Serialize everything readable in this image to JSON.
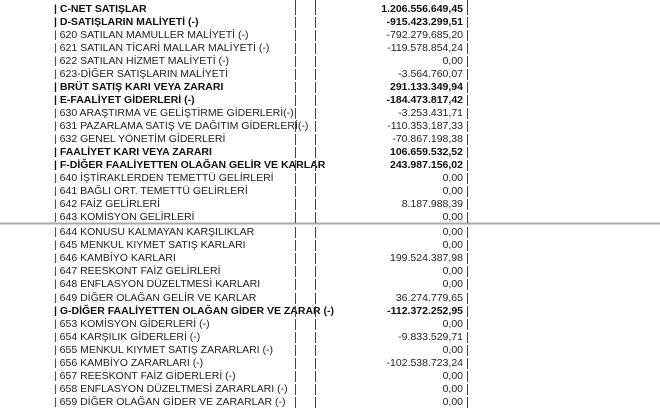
{
  "rows": [
    {
      "label": "| C-NET SATIŞLAR",
      "value": "1.206.556.649,45",
      "bold": true
    },
    {
      "label": "| D-SATIŞLARIN MALİYETİ (-)",
      "value": "-915.423.299,51",
      "bold": true
    },
    {
      "label": "| 620 SATILAN MAMULLER MALİYETİ (-)",
      "value": "-792.279.685,20",
      "bold": false
    },
    {
      "label": "| 621 SATILAN TİCARİ MALLAR MALİYETİ (-)",
      "value": "-119.578.854,24",
      "bold": false
    },
    {
      "label": "| 622 SATILAN HİZMET MALİYETİ (-)",
      "value": "0,00",
      "bold": false
    },
    {
      "label": "| 623-DİĞER SATIŞLARIN MALİYETİ",
      "value": "-3.564.760,07",
      "bold": false
    },
    {
      "label": "| BRÜT SATIŞ KARI VEYA ZARARI",
      "value": "291.133.349,94",
      "bold": true
    },
    {
      "label": "| E-FAALİYET GİDERLERİ (-)",
      "value": "-184.473.817,42",
      "bold": true
    },
    {
      "label": "| 630 ARAŞTIRMA VE GELİŞTİRME GİDERLERİ(-)",
      "value": "-3.253.431,71",
      "bold": false
    },
    {
      "label": "| 631 PAZARLAMA SATIŞ VE DAĞITIM GİDERLERİ(-)",
      "value": "-110.353.187,33",
      "bold": false
    },
    {
      "label": "| 632 GENEL YÖNETİM GİDERLERİ",
      "value": "-70.867.198,38",
      "bold": false
    },
    {
      "label": "| FAALİYET KARI VEYA ZARARI",
      "value": "106.659.532,52",
      "bold": true
    },
    {
      "label": "| F-DİĞER FAALİYETTEN OLAĞAN GELİR VE KARLAR",
      "value": "243.987.156,02",
      "bold": true
    },
    {
      "label": "| 640 İŞTİRAKLERDEN TEMETTÜ GELİRLERİ",
      "value": "0,00",
      "bold": false
    },
    {
      "label": "| 641 BAĞLI ORT. TEMETTÜ GELİRLERİ",
      "value": "0,00",
      "bold": false
    },
    {
      "label": "| 642 FAİZ GELİRLERİ",
      "value": "8.187.988,39",
      "bold": false
    },
    {
      "label": "| 643 KOMİSYON GELİRLERİ",
      "value": "0,00",
      "bold": false
    },
    {
      "label": "| 644 KONUSU KALMAYAN KARŞILIKLAR",
      "value": "0,00",
      "bold": false
    },
    {
      "label": "| 645 MENKUL KIYMET SATIŞ KARLARI",
      "value": "0,00",
      "bold": false
    },
    {
      "label": "| 646 KAMBİYO KARLARI",
      "value": "199.524.387,98",
      "bold": false
    },
    {
      "label": "| 647 REESKONT FAİZ GELİRLERİ",
      "value": "0,00",
      "bold": false
    },
    {
      "label": "| 648 ENFLASYON DÜZELTMESİ KARLARI",
      "value": "0,00",
      "bold": false
    },
    {
      "label": "| 649 DİĞER OLAĞAN GELİR VE KARLAR",
      "value": "36.274.779,65",
      "bold": false
    },
    {
      "label": "| G-DİĞER FAALİYETTEN OLAĞAN GİDER VE ZARAR (-)",
      "value": "-112.372.252,95",
      "bold": true
    },
    {
      "label": "| 653 KOMİSYON GİDERLERİ (-)",
      "value": "0,00",
      "bold": false
    },
    {
      "label": "| 654 KARŞILIK GİDERLERİ (-)",
      "value": "-9.833.529,71",
      "bold": false
    },
    {
      "label": "| 655 MENKUL KIYMET SATIŞ ZARARLARI (-)",
      "value": "0,00",
      "bold": false
    },
    {
      "label": "| 656 KAMBİYO ZARARLARI (-)",
      "value": "-102.538.723,24",
      "bold": false
    },
    {
      "label": "| 657 REESKONT FAİZ GİDERLERİ (-)",
      "value": "0,00",
      "bold": false
    },
    {
      "label": "| 658 ENFLASYON DÜZELTMESİ ZARARLARI (-)",
      "value": "0,00",
      "bold": false
    },
    {
      "label": "| 659 DİĞER OLAĞAN GİDER VE ZARARLAR (-)",
      "value": "0,00",
      "bold": false
    }
  ]
}
